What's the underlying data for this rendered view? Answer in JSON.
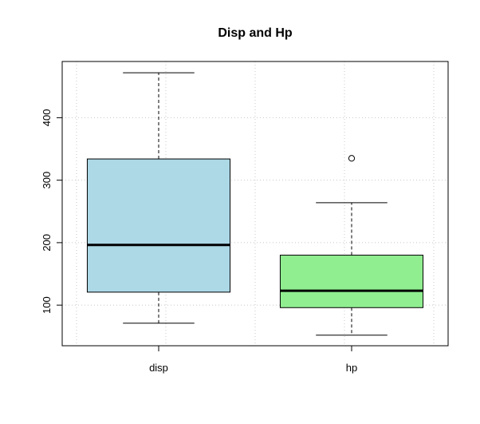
{
  "chart_data": {
    "type": "box",
    "title": "Disp and Hp",
    "xlabel": "",
    "ylabel": "",
    "categories": [
      "disp",
      "hp"
    ],
    "ylim": [
      35,
      490
    ],
    "y_ticks": [
      100,
      200,
      300,
      400
    ],
    "grid": true,
    "legend": false,
    "boxes": [
      {
        "category": "disp",
        "whisker_low": 71.1,
        "q1": 120.8,
        "median": 196.3,
        "q3": 334,
        "whisker_high": 472,
        "outliers": [],
        "fill": "#add8e6"
      },
      {
        "category": "hp",
        "whisker_low": 52,
        "q1": 96,
        "median": 123,
        "q3": 180,
        "whisker_high": 264,
        "outliers": [
          335
        ],
        "fill": "#90ee90"
      }
    ]
  }
}
